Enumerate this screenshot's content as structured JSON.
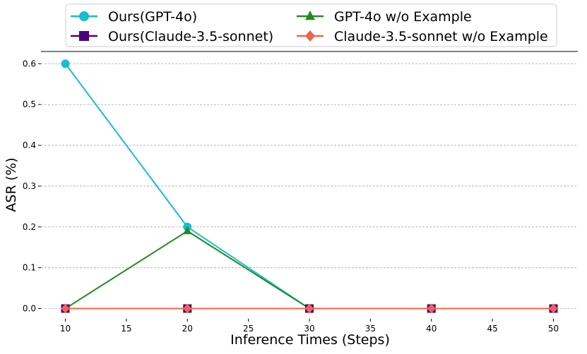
{
  "chart_data": {
    "type": "line",
    "xlabel": "Inference Times (Steps)",
    "ylabel": "ASR (%)",
    "x": [
      10,
      20,
      30,
      40,
      50
    ],
    "xlim": [
      8,
      52
    ],
    "ylim": [
      -0.025,
      0.63
    ],
    "xticks": [
      "10",
      "15",
      "20",
      "25",
      "30",
      "35",
      "40",
      "45",
      "50"
    ],
    "yticks": [
      "0.0",
      "0.1",
      "0.2",
      "0.3",
      "0.4",
      "0.5",
      "0.6"
    ],
    "grid": "horizontal dashed",
    "legend_position": "top",
    "series": [
      {
        "name": "Ours(GPT-4o)",
        "values": [
          0.6,
          0.2,
          0.0,
          0.0,
          0.0
        ],
        "color": "#17becf",
        "marker": "circle"
      },
      {
        "name": "GPT-4o w/o Example",
        "values": [
          0.0,
          0.19,
          0.0,
          0.0,
          0.0
        ],
        "color": "#228b22",
        "marker": "triangle"
      },
      {
        "name": "Ours(Claude-3.5-sonnet)",
        "values": [
          0.0,
          0.0,
          0.0,
          0.0,
          0.0
        ],
        "color": "#4b0082",
        "marker": "square"
      },
      {
        "name": "Claude-3.5-sonnet w/o Example",
        "values": [
          0.0,
          0.0,
          0.0,
          0.0,
          0.0
        ],
        "color": "#f0654a",
        "marker": "diamond"
      }
    ]
  }
}
